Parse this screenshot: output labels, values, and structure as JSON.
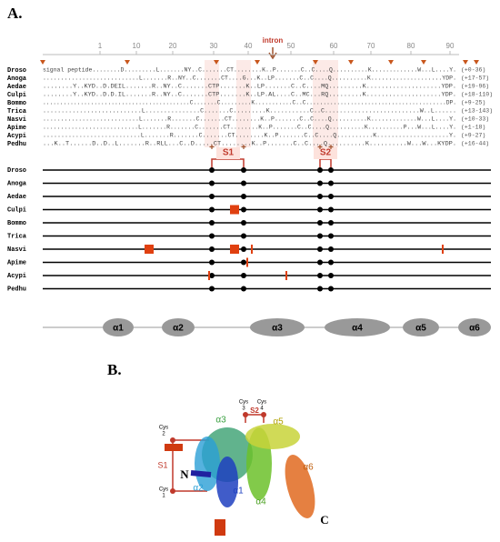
{
  "panel_a": {
    "label": "A.",
    "ruler": [
      "1",
      "10",
      "20",
      "30",
      "40",
      "50",
      "60",
      "70",
      "80",
      "90"
    ],
    "intron": "intron",
    "species": [
      {
        "name": "Droso",
        "sequence": "signal peptide........D.........L.......NY..C.......CT........K..P.......C..C....Q..........K.............W...L....Y.",
        "range": "(+0-36)"
      },
      {
        "name": "Anoga",
        "sequence": "...........................L.......R..NY..C.......CT....G...K..LP.......C..C....Q..........K....................YDP.",
        "range": "(+17-57)"
      },
      {
        "name": "Aedae",
        "sequence": "........Y..KYD..D.DEIL.......R..NY..C.......CTP.......K..LP.......C..C....MQ.........K....................YDP.",
        "range": "(+19-96)"
      },
      {
        "name": "Culpi",
        "sequence": "........Y..KYD..D.D.IL.......R..NY..C.......CTP.......K..LP.AL....C..MC...RQ.........K....................YDP.",
        "range": "(+18-110)"
      },
      {
        "name": "Bommo",
        "sequence": "...........................................C.......C.........K...........C..C.........................................DP.",
        "range": "(+9-25)"
      },
      {
        "name": "Trica",
        "sequence": "...........................L...............C.......C.........K...........C..C..........................W..L......",
        "range": "(+13-143)"
      },
      {
        "name": "Nasvi",
        "sequence": "...........................L.......R.......C.......CT........K..P.......C..C....Q..........K.............W...L....Y.",
        "range": "(+10-33)"
      },
      {
        "name": "Apime",
        "sequence": "...........................L.......R.......C.......CT........K..P.......C..C....Q..........K..........P...W...L....Y.",
        "range": "(+1-18)"
      },
      {
        "name": "Acypi",
        "sequence": "...........................L.......R.......C.......CT........K..P.......C..C....Q..........K....................Y.",
        "range": "(+9-27)"
      },
      {
        "name": "Pedhu",
        "sequence": "...K..T......D..D..L.......R..RLL...C..D.....CT........K..P.......C..C....Q..........K..........W...W...KYDP.",
        "range": "(+16-44)"
      }
    ],
    "bonds": [
      "S1",
      "S2"
    ],
    "helices": [
      "α1",
      "α2",
      "α3",
      "α4",
      "α5",
      "α6"
    ]
  },
  "panel_b": {
    "label": "B.",
    "helices": [
      "α1",
      "α2",
      "α3",
      "α4",
      "α5",
      "α6"
    ],
    "n_term": "N",
    "c_term": "C",
    "bonds": [
      "S1",
      "S2"
    ],
    "cys": [
      {
        "text": "Cys",
        "num": "1"
      },
      {
        "text": "Cys",
        "num": "2"
      },
      {
        "text": "Cys",
        "num": "3"
      },
      {
        "text": "Cys",
        "num": "4"
      }
    ]
  }
}
